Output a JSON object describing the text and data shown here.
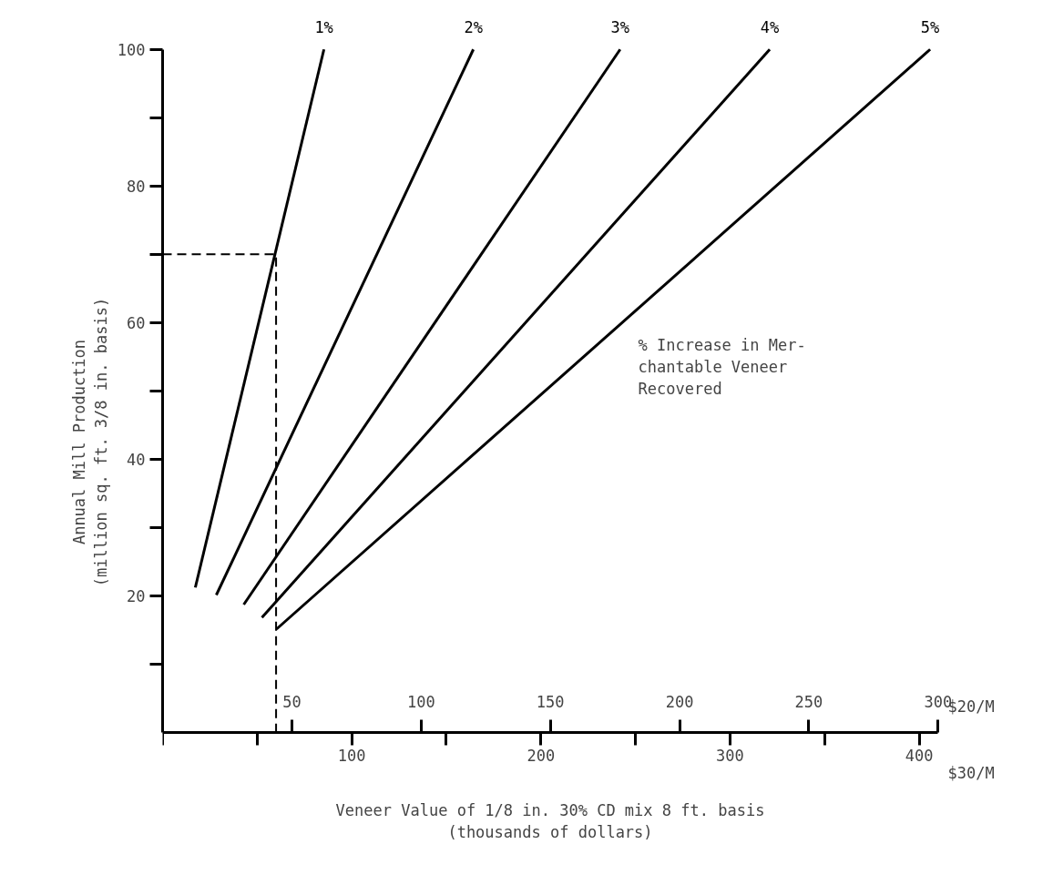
{
  "chart_data": {
    "type": "line",
    "xlabel": "Veneer Value of 1/8 in. 30% CD mix 8 ft. basis\n(thousands of dollars)",
    "ylabel": "Annual Mill Production\n(million sq. ft. 3/8 in. basis)",
    "annotations": [
      "% Increase in Mer-\nchantable Veneer\nRecovered",
      "$20/M",
      "$30/M"
    ],
    "xlim": [
      0,
      410
    ],
    "xticks": [
      {
        "value": 0,
        "label": null
      },
      {
        "value": 50,
        "label": null
      },
      100,
      {
        "value": 150,
        "label": null
      },
      200,
      {
        "value": 250,
        "label": null
      },
      300,
      {
        "value": 350,
        "label": null
      },
      400
    ],
    "x2lim": [
      0,
      300
    ],
    "x2ticks": [
      50,
      100,
      150,
      200,
      250,
      300
    ],
    "ylim": [
      0,
      100
    ],
    "yticks": [
      {
        "value": 10,
        "label": null
      },
      20,
      {
        "value": 30,
        "label": null
      },
      40,
      {
        "value": 50,
        "label": null
      },
      60,
      {
        "value": 70,
        "label": null
      },
      80,
      {
        "value": 90,
        "label": null
      },
      100
    ],
    "series": [
      {
        "name": "1%",
        "color": "#000000",
        "x": [
          17.3,
          85.3
        ],
        "values": [
          21.2,
          100
        ]
      },
      {
        "name": "2%",
        "color": "#000000",
        "x": [
          28.4,
          164.3
        ],
        "values": [
          20.1,
          100
        ]
      },
      {
        "name": "3%",
        "color": "#000000",
        "x": [
          42.9,
          241.9
        ],
        "values": [
          18.7,
          100
        ]
      },
      {
        "name": "4%",
        "color": "#000000",
        "x": [
          52.5,
          321
        ],
        "values": [
          16.8,
          100
        ]
      },
      {
        "name": "5%",
        "color": "#000000",
        "x": [
          60.2,
          405.8
        ],
        "values": [
          15.1,
          100
        ]
      },
      {
        "type": "line",
        "color": "#000000",
        "line_style": "dashed",
        "x": [
          0,
          60,
          60
        ],
        "values": [
          70,
          70,
          0
        ]
      }
    ]
  }
}
